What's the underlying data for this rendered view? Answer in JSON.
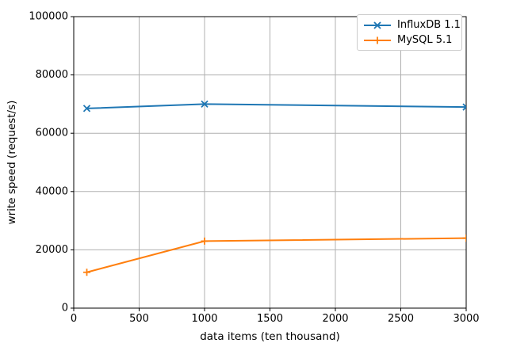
{
  "figure": {
    "background": "#ffffff"
  },
  "chart_data": {
    "type": "line",
    "title": "",
    "xlabel": "data items (ten thousand)",
    "ylabel": "write speed (request/s)",
    "xlim": [
      0,
      3000
    ],
    "ylim": [
      0,
      100000
    ],
    "xticks": [
      0,
      500,
      1000,
      1500,
      2000,
      2500,
      3000
    ],
    "yticks": [
      0,
      20000,
      40000,
      60000,
      80000,
      100000
    ],
    "grid": true,
    "legend_position": "upper right",
    "x": [
      100,
      1000,
      3000
    ],
    "series": [
      {
        "name": "InfluxDB 1.1",
        "color": "#1f77b4",
        "marker": "x",
        "values": [
          68500,
          70000,
          69000
        ]
      },
      {
        "name": "MySQL 5.1",
        "color": "#ff7f0e",
        "marker": "+",
        "values": [
          12300,
          23000,
          24000
        ]
      }
    ],
    "colors": {
      "grid": "#b0b0b0",
      "spine": "#000000",
      "tick_text": "#000000"
    }
  }
}
